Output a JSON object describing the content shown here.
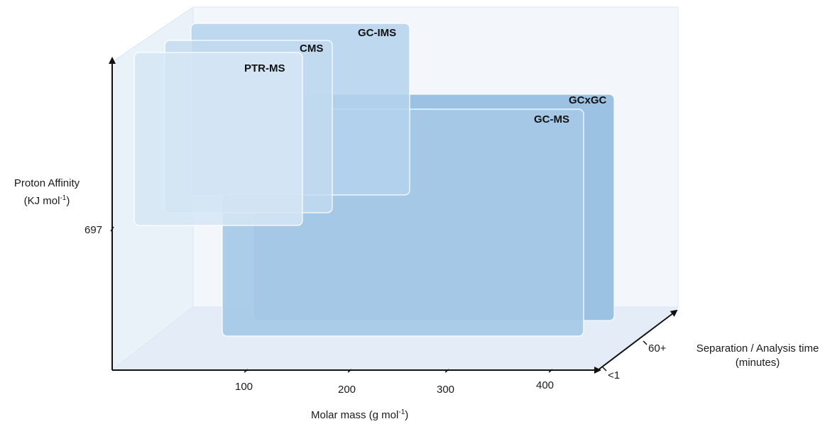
{
  "axes": {
    "y": {
      "label_line1": "Proton Affinity",
      "label_line2_pre": "(KJ mol",
      "label_line2_sup": "-1",
      "label_line2_post": ")",
      "tick": "697"
    },
    "x": {
      "label_pre": "Molar mass (g mol",
      "label_sup": "-1",
      "label_post": ")",
      "ticks": [
        "100",
        "200",
        "300",
        "400"
      ]
    },
    "z": {
      "label_line1": "Separation / Analysis time",
      "label_line2": "(minutes)",
      "ticks": [
        "60+",
        "<1"
      ]
    }
  },
  "panels": [
    {
      "id": "gc-ims",
      "label": "GC-IMS"
    },
    {
      "id": "cms",
      "label": "CMS"
    },
    {
      "id": "ptr-ms",
      "label": "PTR-MS"
    },
    {
      "id": "gcxgc",
      "label": "GCxGC"
    },
    {
      "id": "gc-ms",
      "label": "GC-MS"
    }
  ],
  "colors": {
    "dark_panel": "#9cc2e3",
    "mid_panel": "#a9cbe8",
    "light_panel": "#c5dcf0",
    "lightest_panel": "#d5e5f4",
    "box_face": "#eef4fb",
    "axis": "#111111"
  }
}
